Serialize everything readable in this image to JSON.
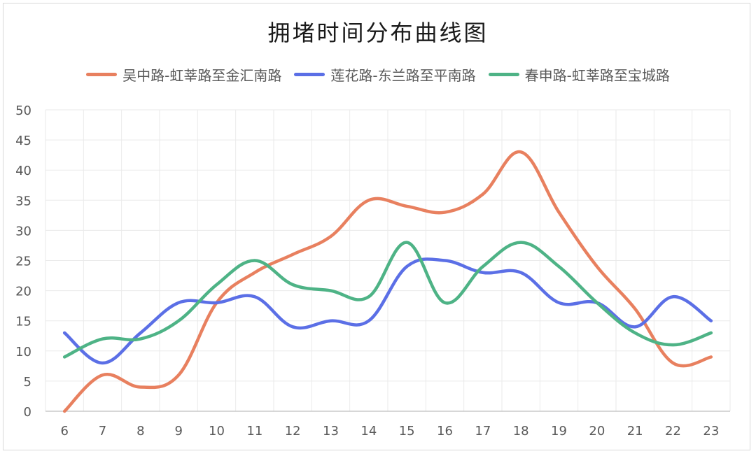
{
  "chart_data": {
    "type": "line",
    "title": "拥堵时间分布曲线图",
    "xlabel": "",
    "ylabel": "",
    "categories": [
      "6",
      "7",
      "8",
      "9",
      "10",
      "11",
      "12",
      "13",
      "14",
      "15",
      "16",
      "17",
      "18",
      "19",
      "20",
      "21",
      "22",
      "23"
    ],
    "ylim": [
      0,
      50
    ],
    "yticks": [
      0,
      5,
      10,
      15,
      20,
      25,
      30,
      35,
      40,
      45,
      50
    ],
    "grid": true,
    "legend_position": "top",
    "series": [
      {
        "name": "吴中路-虹莘路至金汇南路",
        "color": "#E8805F",
        "values": [
          0,
          6,
          4,
          6,
          18,
          23,
          26,
          29,
          35,
          34,
          33,
          36,
          43,
          33,
          24,
          17,
          8,
          9
        ]
      },
      {
        "name": "莲花路-东兰路至平南路",
        "color": "#5B6FE6",
        "values": [
          13,
          8,
          13,
          18,
          18,
          19,
          14,
          15,
          15,
          24,
          25,
          23,
          23,
          18,
          18,
          14,
          19,
          15
        ]
      },
      {
        "name": "春申路-虹莘路至宝城路",
        "color": "#4EB386",
        "values": [
          9,
          12,
          12,
          15,
          21,
          25,
          21,
          20,
          19,
          28,
          18,
          24,
          28,
          24,
          18,
          13,
          11,
          13
        ]
      }
    ]
  }
}
